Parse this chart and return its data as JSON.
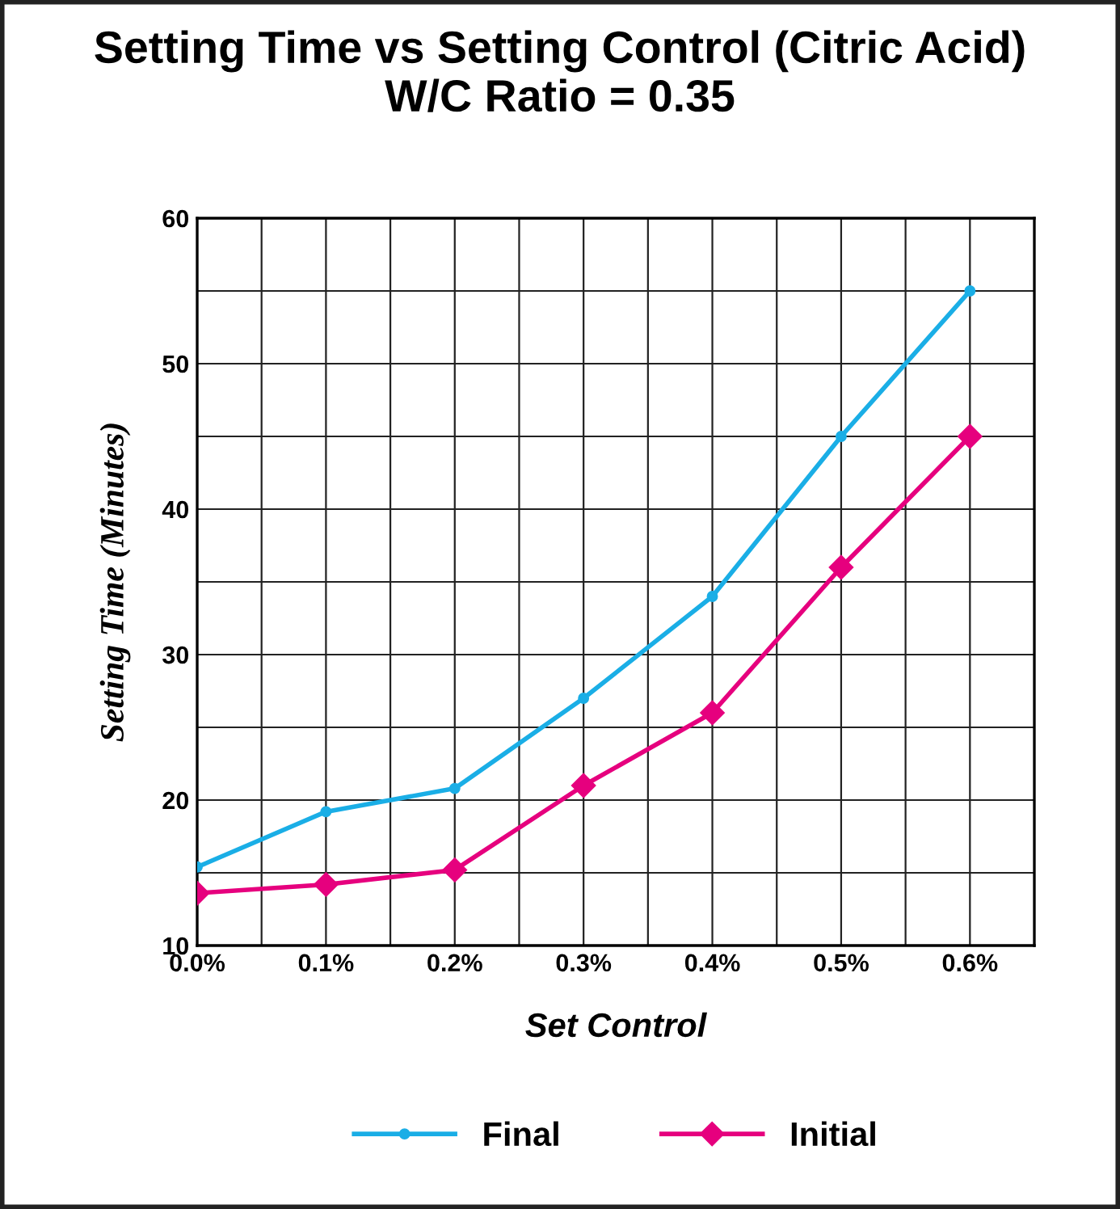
{
  "chart_data": {
    "type": "line",
    "title": "Setting Time vs Setting Control (Citric Acid)\nW/C Ratio = 0.35",
    "xlabel": "Set Control",
    "ylabel": "Setting Time (Minutes)",
    "x": [
      0,
      0.1,
      0.2,
      0.3,
      0.4,
      0.5,
      0.6
    ],
    "series": [
      {
        "name": "Final",
        "color": "#1aaee6",
        "marker": "circle",
        "values": [
          15.4,
          19.2,
          20.8,
          27,
          34,
          45,
          55
        ]
      },
      {
        "name": "Initial",
        "color": "#e6007e",
        "marker": "diamond",
        "values": [
          13.6,
          14.2,
          15.2,
          21,
          26,
          36,
          45
        ]
      }
    ],
    "xlim": [
      0,
      0.65
    ],
    "xticks": [
      {
        "value": 0,
        "label": "0.0%"
      },
      {
        "value": 0.05,
        "label": null
      },
      {
        "value": 0.1,
        "label": "0.1%"
      },
      {
        "value": 0.15,
        "label": null
      },
      {
        "value": 0.2,
        "label": "0.2%"
      },
      {
        "value": 0.25,
        "label": null
      },
      {
        "value": 0.3,
        "label": "0.3%"
      },
      {
        "value": 0.35,
        "label": null
      },
      {
        "value": 0.4,
        "label": "0.4%"
      },
      {
        "value": 0.45,
        "label": null
      },
      {
        "value": 0.5,
        "label": "0.5%"
      },
      {
        "value": 0.55,
        "label": null
      },
      {
        "value": 0.6,
        "label": "0.6%"
      }
    ],
    "ylim": [
      10,
      60
    ],
    "yticks": [
      10,
      {
        "value": 15,
        "label": null
      },
      20,
      {
        "value": 25,
        "label": null
      },
      30,
      {
        "value": 35,
        "label": null
      },
      40,
      {
        "value": 45,
        "label": null
      },
      50,
      {
        "value": 55,
        "label": null
      },
      60
    ],
    "grid": true,
    "legend": "bottom",
    "line_style": "solid"
  }
}
